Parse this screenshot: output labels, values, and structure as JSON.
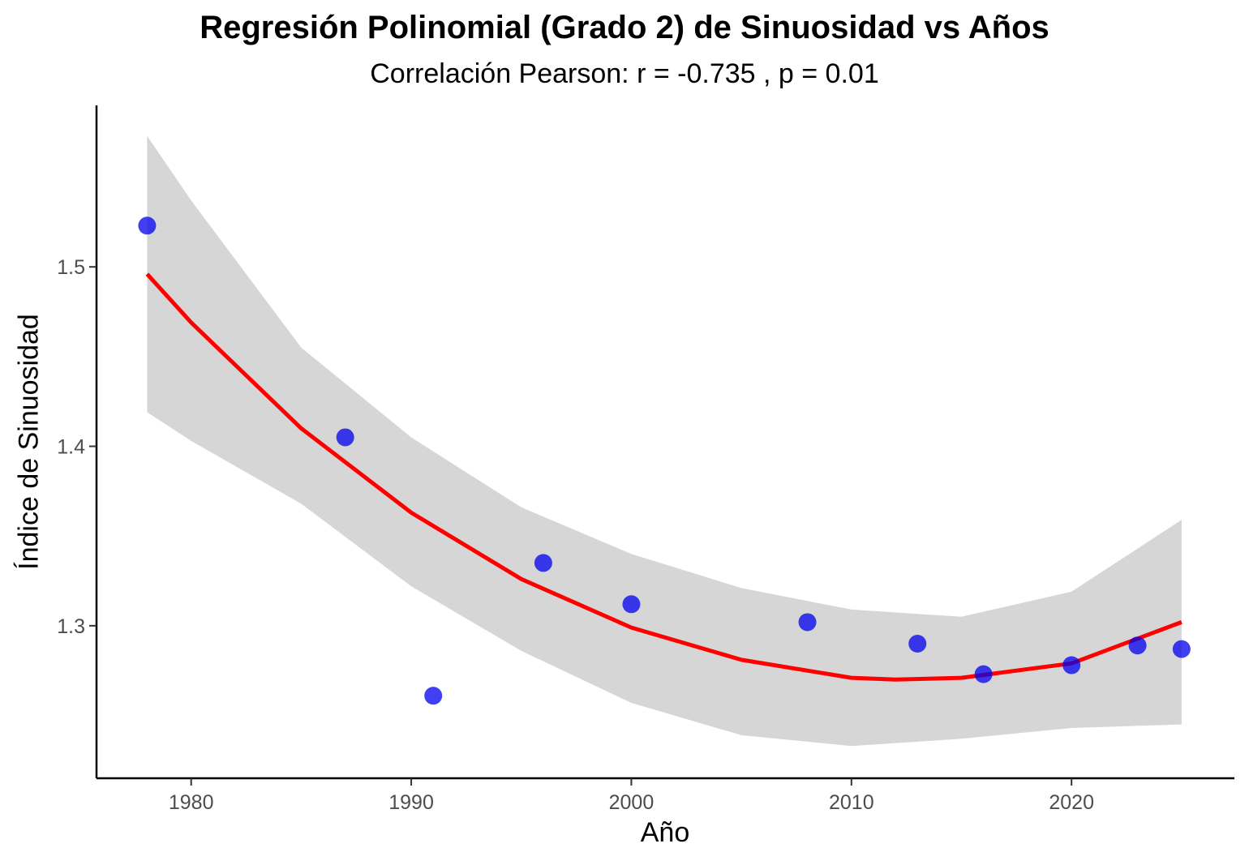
{
  "chart_data": {
    "type": "scatter",
    "title": "Regresión Polinomial (Grado 2) de Sinuosidad vs Años",
    "subtitle": "Correlación Pearson: r = -0.735 , p = 0.01",
    "xlabel": "Año",
    "ylabel": "Índice de Sinuosidad",
    "xlim": [
      1975.7,
      2027.4
    ],
    "ylim": [
      1.215,
      1.59
    ],
    "xticks": [
      1980,
      1990,
      2000,
      2010,
      2020
    ],
    "yticks": [
      1.3,
      1.4,
      1.5
    ],
    "points": [
      {
        "x": 1978,
        "y": 1.523
      },
      {
        "x": 1987,
        "y": 1.405
      },
      {
        "x": 1991,
        "y": 1.261
      },
      {
        "x": 1996,
        "y": 1.335
      },
      {
        "x": 2000,
        "y": 1.312
      },
      {
        "x": 2008,
        "y": 1.302
      },
      {
        "x": 2013,
        "y": 1.29
      },
      {
        "x": 2016,
        "y": 1.273
      },
      {
        "x": 2020,
        "y": 1.278
      },
      {
        "x": 2023,
        "y": 1.289
      },
      {
        "x": 2025,
        "y": 1.287
      }
    ],
    "fit_line": [
      {
        "x": 1978,
        "y": 1.496
      },
      {
        "x": 1980,
        "y": 1.469
      },
      {
        "x": 1985,
        "y": 1.41
      },
      {
        "x": 1990,
        "y": 1.363
      },
      {
        "x": 1995,
        "y": 1.326
      },
      {
        "x": 2000,
        "y": 1.299
      },
      {
        "x": 2005,
        "y": 1.281
      },
      {
        "x": 2010,
        "y": 1.271
      },
      {
        "x": 2012,
        "y": 1.27
      },
      {
        "x": 2015,
        "y": 1.271
      },
      {
        "x": 2020,
        "y": 1.279
      },
      {
        "x": 2025,
        "y": 1.302
      }
    ],
    "ci_upper": [
      {
        "x": 1978,
        "y": 1.573
      },
      {
        "x": 1980,
        "y": 1.537
      },
      {
        "x": 1985,
        "y": 1.455
      },
      {
        "x": 1990,
        "y": 1.405
      },
      {
        "x": 1995,
        "y": 1.366
      },
      {
        "x": 2000,
        "y": 1.34
      },
      {
        "x": 2005,
        "y": 1.321
      },
      {
        "x": 2010,
        "y": 1.309
      },
      {
        "x": 2015,
        "y": 1.305
      },
      {
        "x": 2020,
        "y": 1.319
      },
      {
        "x": 2025,
        "y": 1.359
      }
    ],
    "ci_lower": [
      {
        "x": 1978,
        "y": 1.419
      },
      {
        "x": 1980,
        "y": 1.403
      },
      {
        "x": 1985,
        "y": 1.368
      },
      {
        "x": 1990,
        "y": 1.322
      },
      {
        "x": 1995,
        "y": 1.286
      },
      {
        "x": 2000,
        "y": 1.257
      },
      {
        "x": 2005,
        "y": 1.239
      },
      {
        "x": 2010,
        "y": 1.233
      },
      {
        "x": 2015,
        "y": 1.237
      },
      {
        "x": 2020,
        "y": 1.243
      },
      {
        "x": 2025,
        "y": 1.245
      }
    ],
    "colors": {
      "points": "#0000ee",
      "fit_line": "#ff0000",
      "ci_band": "#d6d6d6",
      "axis": "#000000"
    },
    "grid": false,
    "legend": "none"
  }
}
